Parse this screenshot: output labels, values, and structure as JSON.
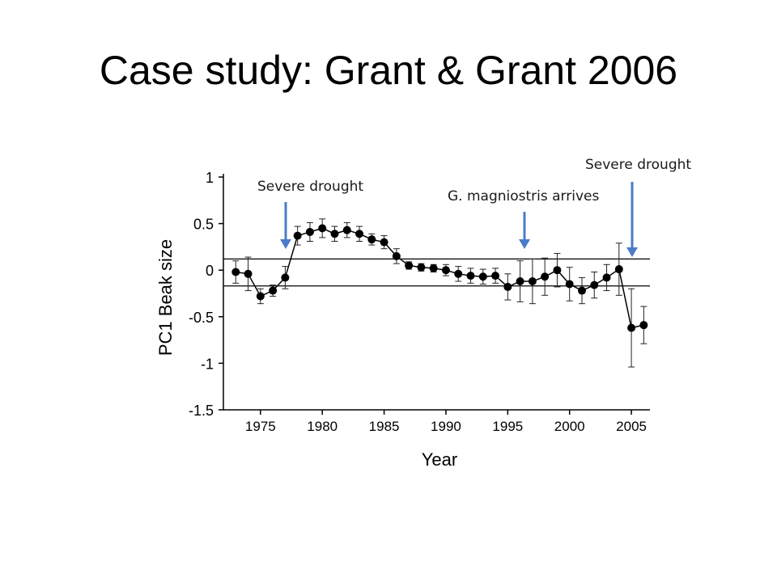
{
  "slide": {
    "title": "Case study: Grant & Grant 2006"
  },
  "annotations": {
    "drought_1": "Severe drought",
    "magnirostris": "G. magniostris arrives",
    "drought_2": "Severe drought"
  },
  "colors": {
    "arrow": "#4a7cc9",
    "marker": "#000000"
  },
  "chart_data": {
    "type": "line",
    "xlabel": "Year",
    "ylabel": "PC1 Beak size",
    "xlim": [
      1972,
      2006.5
    ],
    "ylim": [
      -1.5,
      1
    ],
    "xticks": [
      1975,
      1980,
      1985,
      1990,
      1995,
      2000,
      2005
    ],
    "yticks": [
      1,
      0.5,
      0,
      -0.5,
      -1,
      -1.5
    ],
    "ytick_labels": [
      "1",
      "0.5",
      "0",
      "-0.5",
      "-1",
      "-1.5"
    ],
    "reference_lines": [
      0.12,
      -0.17
    ],
    "series": [
      {
        "x": [
          1973,
          1974,
          1975,
          1976,
          1977,
          1978,
          1979,
          1980,
          1981,
          1982,
          1983,
          1984,
          1985,
          1986,
          1987,
          1988,
          1989,
          1990,
          1991,
          1992,
          1993,
          1994,
          1995,
          1996,
          1997,
          1998,
          1999,
          2000,
          2001,
          2002,
          2003,
          2004,
          2005,
          2006
        ],
        "y": [
          -0.02,
          -0.04,
          -0.28,
          -0.22,
          -0.08,
          0.37,
          0.41,
          0.45,
          0.39,
          0.43,
          0.39,
          0.33,
          0.3,
          0.15,
          0.05,
          0.03,
          0.02,
          0.0,
          -0.04,
          -0.06,
          -0.07,
          -0.06,
          -0.18,
          -0.12,
          -0.12,
          -0.07,
          0.0,
          -0.15,
          -0.22,
          -0.16,
          -0.08,
          0.01,
          -0.62,
          -0.59
        ],
        "error": [
          0.12,
          0.18,
          0.08,
          0.06,
          0.12,
          0.1,
          0.1,
          0.1,
          0.08,
          0.08,
          0.08,
          0.06,
          0.07,
          0.08,
          0.04,
          0.04,
          0.04,
          0.06,
          0.08,
          0.08,
          0.08,
          0.08,
          0.14,
          0.22,
          0.24,
          0.2,
          0.18,
          0.18,
          0.14,
          0.14,
          0.14,
          0.28,
          0.42,
          0.2
        ]
      }
    ]
  }
}
